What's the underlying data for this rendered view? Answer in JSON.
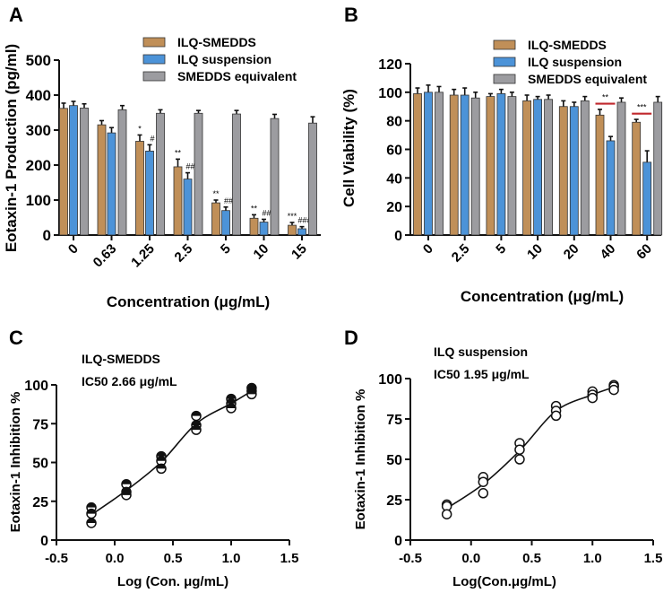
{
  "colors": {
    "ilq_smedds": "#C08F58",
    "ilq_suspension": "#4C93D8",
    "smedds_equivalent": "#9C9CA0",
    "significance_line": "#C0282D"
  },
  "chart_data": [
    {
      "panel_label": "A",
      "type": "bar",
      "ylabel": "Eotaxin-1 Production (pg/ml)",
      "xlabel": "Concentration (μg/mL)",
      "ylim": [
        0,
        500
      ],
      "yticks": [
        "0",
        "100",
        "200",
        "300",
        "400",
        "500"
      ],
      "categories": [
        "0",
        "0.63",
        "1.25",
        "2.5",
        "5",
        "10",
        "15"
      ],
      "legend": "top-right",
      "series": [
        {
          "name": "ILQ-SMEDDS",
          "values": [
            362,
            315,
            268,
            195,
            92,
            48,
            28
          ],
          "errors": [
            15,
            12,
            18,
            22,
            8,
            10,
            8
          ],
          "annotations": [
            "",
            "",
            "*",
            "**",
            "**",
            "**",
            "***"
          ]
        },
        {
          "name": "ILQ suspension",
          "values": [
            370,
            292,
            240,
            160,
            70,
            37,
            18
          ],
          "errors": [
            12,
            15,
            18,
            18,
            10,
            8,
            6
          ],
          "annotations": [
            "",
            "",
            "#",
            "##",
            "##",
            "##",
            "###"
          ]
        },
        {
          "name": "SMEDDS equivalent",
          "values": [
            363,
            358,
            348,
            348,
            346,
            333,
            320
          ],
          "errors": [
            12,
            12,
            10,
            8,
            10,
            12,
            18
          ],
          "annotations": [
            "",
            "",
            "",
            "",
            "",
            "",
            ""
          ]
        }
      ]
    },
    {
      "panel_label": "B",
      "type": "bar",
      "ylabel": "Cell Viability (%)",
      "xlabel": "Concentration (μg/mL)",
      "ylim": [
        0,
        120
      ],
      "yticks": [
        "0",
        "20",
        "40",
        "60",
        "80",
        "100",
        "120"
      ],
      "categories": [
        "0",
        "2.5",
        "5",
        "10",
        "20",
        "40",
        "60"
      ],
      "legend": "top-right",
      "series": [
        {
          "name": "ILQ-SMEDDS",
          "values": [
            99,
            98,
            97,
            94,
            90,
            84,
            79
          ],
          "errors": [
            4,
            4,
            2,
            4,
            4,
            4,
            2
          ]
        },
        {
          "name": "ILQ suspension",
          "values": [
            100,
            98,
            99,
            95,
            90,
            66,
            51
          ],
          "errors": [
            5,
            5,
            3,
            2,
            3,
            3,
            8
          ]
        },
        {
          "name": "SMEDDS equivalent",
          "values": [
            100,
            96,
            97,
            95,
            94,
            93,
            93
          ],
          "errors": [
            4,
            4,
            3,
            3,
            3,
            3,
            4
          ]
        }
      ],
      "significance": [
        {
          "category": "40",
          "label": "**",
          "y": 92
        },
        {
          "category": "60",
          "label": "***",
          "y": 85
        }
      ]
    },
    {
      "panel_label": "C",
      "type": "scatter",
      "annotation_lines": [
        "ILQ-SMEDDS",
        "IC50 2.66 μg/mL"
      ],
      "ylabel": "Eotaxin-1 Inhibition %",
      "xlabel": "Log (Con. μg/mL)",
      "xlim": [
        -0.5,
        1.5
      ],
      "ylim": [
        0,
        100
      ],
      "xticks": [
        "-0.5",
        "0.0",
        "0.5",
        "1.0",
        "1.5"
      ],
      "yticks": [
        "0",
        "25",
        "50",
        "75",
        "100"
      ],
      "marker": "half-filled-circle",
      "x": [
        -0.2,
        0.1,
        0.4,
        0.7,
        1.0,
        1.176
      ],
      "y": [
        [
          21,
          17,
          11
        ],
        [
          36,
          31,
          29
        ],
        [
          54,
          51,
          46
        ],
        [
          80,
          74,
          71
        ],
        [
          91,
          88,
          85
        ],
        [
          98,
          96,
          94
        ]
      ],
      "fit_curve": "sigmoidal"
    },
    {
      "panel_label": "D",
      "type": "scatter",
      "annotation_lines": [
        "ILQ suspension",
        "IC50 1.95 μg/mL"
      ],
      "ylabel": "Eotaxin-1 Inhibition %",
      "xlabel": "Log(Con.μg/mL)",
      "xlim": [
        -0.5,
        1.5
      ],
      "ylim": [
        0,
        100
      ],
      "xticks": [
        "-0.5",
        "0.0",
        "0.5",
        "1.0",
        "1.5"
      ],
      "yticks": [
        "0",
        "25",
        "50",
        "75",
        "100"
      ],
      "marker": "open-circle",
      "x": [
        -0.2,
        0.1,
        0.4,
        0.7,
        1.0,
        1.176
      ],
      "y": [
        [
          22,
          21,
          16
        ],
        [
          39,
          36,
          29
        ],
        [
          60,
          56,
          50
        ],
        [
          83,
          80,
          77
        ],
        [
          92,
          90,
          88
        ],
        [
          96,
          95,
          93
        ]
      ],
      "fit_curve": "sigmoidal"
    }
  ]
}
